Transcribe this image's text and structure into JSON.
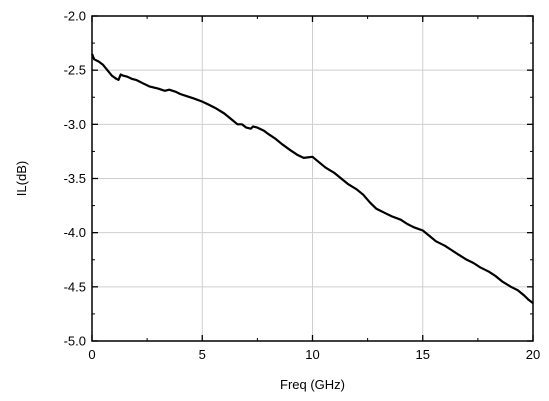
{
  "chart_data": {
    "type": "line",
    "title": "",
    "xlabel": "Freq (GHz)",
    "ylabel": "IL(dB)",
    "xlim": [
      0,
      20
    ],
    "ylim": [
      -5.0,
      -2.0
    ],
    "x_ticks": [
      "0",
      "5",
      "10",
      "15",
      "20"
    ],
    "y_ticks": [
      "-2.0",
      "-2.5",
      "-3.0",
      "-3.5",
      "-4.0",
      "-4.5",
      "-5.0"
    ],
    "grid": true,
    "series": [
      {
        "color": "#000000",
        "x": [
          0.0,
          0.1,
          0.3,
          0.5,
          0.7,
          0.9,
          1.1,
          1.2,
          1.3,
          1.4,
          1.6,
          1.8,
          2.0,
          2.3,
          2.6,
          3.0,
          3.3,
          3.5,
          3.8,
          4.0,
          4.3,
          4.6,
          5.0,
          5.3,
          5.6,
          6.0,
          6.3,
          6.6,
          6.8,
          7.0,
          7.2,
          7.3,
          7.5,
          7.8,
          8.0,
          8.3,
          8.6,
          9.0,
          9.3,
          9.6,
          10.0,
          10.3,
          10.6,
          11.0,
          11.3,
          11.6,
          12.0,
          12.3,
          12.6,
          12.9,
          13.1,
          13.3,
          13.6,
          14.0,
          14.3,
          14.6,
          15.0,
          15.3,
          15.6,
          16.0,
          16.3,
          16.6,
          17.0,
          17.3,
          17.6,
          18.0,
          18.3,
          18.6,
          19.0,
          19.3,
          19.6,
          19.8,
          20.0
        ],
        "values": [
          -2.35,
          -2.4,
          -2.42,
          -2.45,
          -2.5,
          -2.55,
          -2.58,
          -2.59,
          -2.54,
          -2.55,
          -2.56,
          -2.58,
          -2.59,
          -2.62,
          -2.65,
          -2.67,
          -2.69,
          -2.68,
          -2.7,
          -2.72,
          -2.74,
          -2.76,
          -2.79,
          -2.82,
          -2.85,
          -2.9,
          -2.95,
          -3.0,
          -3.0,
          -3.03,
          -3.04,
          -3.02,
          -3.03,
          -3.06,
          -3.09,
          -3.13,
          -3.18,
          -3.24,
          -3.28,
          -3.31,
          -3.3,
          -3.35,
          -3.4,
          -3.45,
          -3.5,
          -3.55,
          -3.6,
          -3.65,
          -3.72,
          -3.78,
          -3.8,
          -3.82,
          -3.85,
          -3.88,
          -3.92,
          -3.95,
          -3.98,
          -4.03,
          -4.08,
          -4.12,
          -4.16,
          -4.2,
          -4.25,
          -4.28,
          -4.32,
          -4.36,
          -4.4,
          -4.45,
          -4.5,
          -4.53,
          -4.58,
          -4.62,
          -4.65
        ]
      }
    ]
  }
}
